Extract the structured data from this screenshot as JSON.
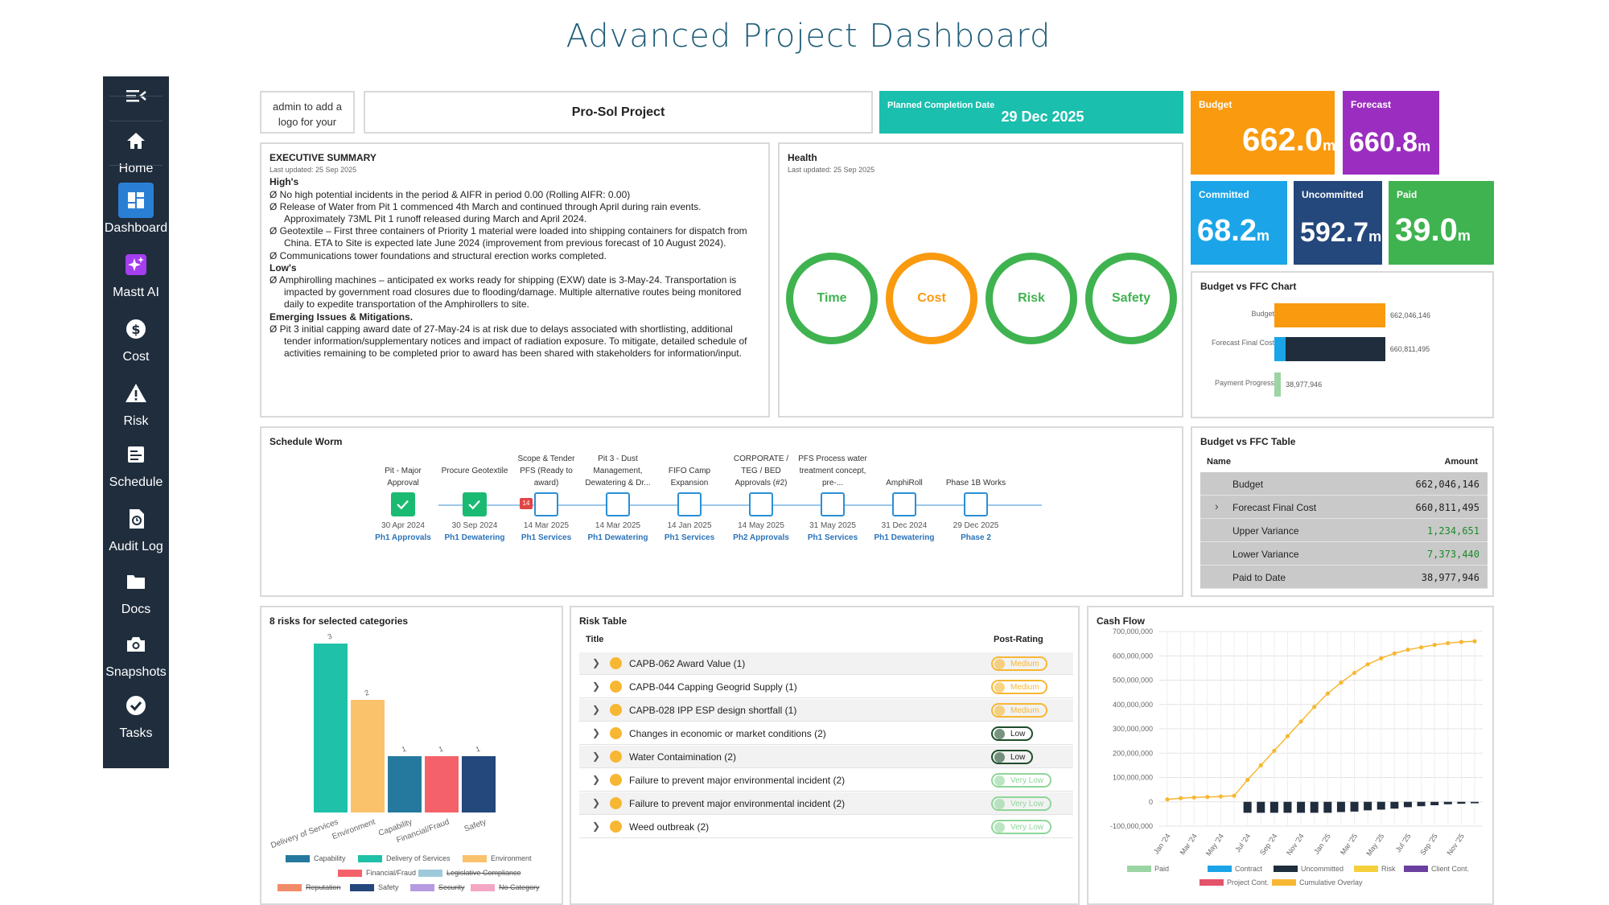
{
  "page_title": "Advanced Project Dashboard",
  "sidebar": {
    "items": [
      {
        "label": "Home",
        "icon": "home-icon"
      },
      {
        "label": "Dashboard",
        "icon": "dashboard-icon",
        "active": true
      },
      {
        "label": "Mastt AI",
        "icon": "sparkle-icon"
      },
      {
        "label": "Cost",
        "icon": "dollar-icon"
      },
      {
        "label": "Risk",
        "icon": "warning-icon"
      },
      {
        "label": "Schedule",
        "icon": "schedule-icon"
      },
      {
        "label": "Audit Log",
        "icon": "audit-icon"
      },
      {
        "label": "Docs",
        "icon": "folder-icon"
      },
      {
        "label": "Snapshots",
        "icon": "camera-icon"
      },
      {
        "label": "Tasks",
        "icon": "check-icon"
      }
    ]
  },
  "header": {
    "logo_placeholder": "admin to add a logo for your",
    "project_name": "Pro-Sol Project",
    "completion_label": "Planned Completion Date",
    "completion_value": "29 Dec 2025"
  },
  "metrics": {
    "budget": {
      "label": "Budget",
      "value": "662.0",
      "unit": "m",
      "color": "#f99a0f"
    },
    "forecast": {
      "label": "Forecast",
      "value": "660.8",
      "unit": "m",
      "color": "#9b2ec0"
    },
    "committed": {
      "label": "Committed",
      "value": "68.2",
      "unit": "m",
      "color": "#1ba5e8"
    },
    "uncommitted": {
      "label": "Uncommitted",
      "value": "592.7",
      "unit": "m",
      "color": "#24477c"
    },
    "paid": {
      "label": "Paid",
      "value": "39.0",
      "unit": "m",
      "color": "#3fb34f"
    }
  },
  "executive_summary": {
    "title": "EXECUTIVE SUMMARY",
    "updated": "Last updated: 25 Sep 2025",
    "highs_heading": "High's",
    "highs": [
      "Ø No high potential incidents in the period & AIFR in period 0.00 (Rolling AIFR: 0.00)",
      "Ø Release of Water from Pit 1 commenced 4th March and continued through April during rain events. Approximately 73ML Pit 1 runoff released during March and April 2024.",
      "Ø Geotextile – First three containers of Priority 1 material were loaded into shipping containers for dispatch from China. ETA to Site is expected late June 2024 (improvement from previous forecast of 10 August 2024).",
      "Ø Communications tower foundations and structural erection works completed."
    ],
    "lows_heading": "Low's",
    "lows": [
      "Ø Amphirolling machines – anticipated ex works ready for shipping (EXW) date is 3-May-24. Transportation is impacted by government road closures due to flooding/damage. Multiple alternative routes being monitored daily to expedite transportation of the Amphirollers to site."
    ],
    "issues_heading": "Emerging Issues & Mitigations.",
    "issues": [
      "Ø Pit 3 initial capping award date of 27-May-24 is at risk due to delays associated with shortlisting, additional tender information/supplementary notices and impact of radiation exposure. To mitigate, detailed schedule of activities remaining to be completed prior to award has been shared with stakeholders for information/input."
    ]
  },
  "health": {
    "title": "Health",
    "updated": "Last updated: 25 Sep 2025",
    "rings": [
      {
        "label": "Time",
        "color": "#3fb34f"
      },
      {
        "label": "Cost",
        "color": "#f99a0f"
      },
      {
        "label": "Risk",
        "color": "#3fb34f"
      },
      {
        "label": "Safety",
        "color": "#3fb34f"
      }
    ]
  },
  "budget_ffc_chart": {
    "title": "Budget vs FFC Chart",
    "rows": [
      {
        "label": "Budget",
        "value_label": "662,046,146",
        "value": 662046146
      },
      {
        "label": "Forecast Final Cost",
        "value_label": "660,811,495",
        "value": 660811495
      },
      {
        "label": "Payment Progress",
        "value_label": "38,977,946",
        "value": 38977946
      }
    ]
  },
  "schedule": {
    "title": "Schedule Worm",
    "milestones": [
      {
        "name": "Pit - Major Approval",
        "date": "30 Apr 2024",
        "phase": "Ph1 Approvals",
        "done": true
      },
      {
        "name": "Procure Geotextile",
        "date": "30 Sep 2024",
        "phase": "Ph1 Dewatering",
        "done": true
      },
      {
        "name": "Scope & Tender PFS (Ready to award)",
        "date": "14 Mar 2025",
        "phase": "Ph1 Services",
        "done": false,
        "flag": "14"
      },
      {
        "name": "Pit 3 - Dust Management, Dewatering & Dr...",
        "date": "14 Mar 2025",
        "phase": "Ph1 Dewatering",
        "done": false
      },
      {
        "name": "FIFO Camp Expansion",
        "date": "14 Jan 2025",
        "phase": "Ph1 Services",
        "done": false
      },
      {
        "name": "CORPORATE / TEG / BED Approvals (#2)",
        "date": "14 May 2025",
        "phase": "Ph2 Approvals",
        "done": false
      },
      {
        "name": "PFS Process water treatment concept, pre-...",
        "date": "31 May 2025",
        "phase": "Ph1 Services",
        "done": false
      },
      {
        "name": "AmphiRoll",
        "date": "31 Dec 2024",
        "phase": "Ph1 Dewatering",
        "done": false
      },
      {
        "name": "Phase 1B Works",
        "date": "29 Dec 2025",
        "phase": "Phase 2",
        "done": false
      }
    ]
  },
  "budget_ffc_table": {
    "title": "Budget vs FFC Table",
    "col_name": "Name",
    "col_amount": "Amount",
    "rows": [
      {
        "name": "Budget",
        "amount": "662,046,146",
        "color": "#222"
      },
      {
        "name": "Forecast Final Cost",
        "amount": "660,811,495",
        "color": "#222",
        "expand": "›"
      },
      {
        "name": "Upper Variance",
        "amount": "1,234,651",
        "color": "#1a8a2a"
      },
      {
        "name": "Lower Variance",
        "amount": "7,373,440",
        "color": "#1a8a2a"
      },
      {
        "name": "Paid to Date",
        "amount": "38,977,946",
        "color": "#222"
      }
    ]
  },
  "risk_categories": {
    "title": "8 risks for selected categories",
    "legend": [
      {
        "label": "Capability",
        "color": "#26799e",
        "struck": false
      },
      {
        "label": "Delivery of Services",
        "color": "#1fc1a8",
        "struck": false
      },
      {
        "label": "Environment",
        "color": "#fbc26c",
        "struck": false
      },
      {
        "label": "Financial/Fraud",
        "color": "#f5616a",
        "struck": false
      },
      {
        "label": "Legislative Compliance",
        "color": "#9ec9da",
        "struck": true
      },
      {
        "label": "Reputation",
        "color": "#f28b6a",
        "struck": true
      },
      {
        "label": "Safety",
        "color": "#24477c",
        "struck": false
      },
      {
        "label": "Security",
        "color": "#b79be0",
        "struck": true
      },
      {
        "label": "No Category",
        "color": "#f4a7c4",
        "struck": true
      }
    ]
  },
  "chart_data": [
    {
      "type": "bar",
      "title": "8 risks for selected categories",
      "categories": [
        "Delivery of Services",
        "Environment",
        "Capability",
        "Financial/Fraud",
        "Safety"
      ],
      "values": [
        3,
        2,
        1,
        1,
        1
      ],
      "data_labels": [
        "3",
        "2",
        "1",
        "1",
        "1"
      ],
      "colors": [
        "#1fc1a8",
        "#fbc26c",
        "#26799e",
        "#f5616a",
        "#24477c"
      ],
      "ylim": [
        0,
        3
      ]
    },
    {
      "type": "bar",
      "title": "Cash Flow",
      "categories": [
        "Jan '24",
        "Feb '24",
        "Mar '24",
        "Apr '24",
        "May '24",
        "Jun '24",
        "Jul '24",
        "Aug '24",
        "Sep '24",
        "Oct '24",
        "Nov '24",
        "Dec '24",
        "Jan '25",
        "Feb '25",
        "Mar '25",
        "Apr '25",
        "May '25",
        "Jun '25",
        "Jul '25",
        "Aug '25",
        "Sep '25",
        "Oct '25",
        "Nov '25",
        "Dec '25"
      ],
      "x_tick_labels": [
        "Jan '24",
        "Mar '24",
        "May '24",
        "Jul '24",
        "Sep '24",
        "Nov '24",
        "Jan '25",
        "Mar '25",
        "May '25",
        "Jul '25",
        "Sep '25",
        "Nov '25"
      ],
      "y_tick_labels": [
        "700,000,000",
        "600,000,000",
        "500,000,000",
        "400,000,000",
        "300,000,000",
        "200,000,000",
        "100,000,000",
        "0",
        "-100,000,000"
      ],
      "ylim": [
        -100000000,
        700000000
      ],
      "series": [
        {
          "name": "Uncommitted",
          "type": "bar",
          "color": "#1f2d3d",
          "values": [
            0,
            0,
            0,
            0,
            0,
            0,
            -45000000,
            -45000000,
            -45000000,
            -45000000,
            -45000000,
            -45000000,
            -45000000,
            -42000000,
            -40000000,
            -35000000,
            -32000000,
            -28000000,
            -22000000,
            -18000000,
            -14000000,
            -10000000,
            -8000000,
            -6000000
          ]
        },
        {
          "name": "Cumulative Overlay",
          "type": "line",
          "color": "#f7b733",
          "values": [
            10000000,
            15000000,
            18000000,
            20000000,
            22000000,
            25000000,
            90000000,
            150000000,
            210000000,
            270000000,
            330000000,
            390000000,
            445000000,
            490000000,
            530000000,
            565000000,
            590000000,
            610000000,
            625000000,
            635000000,
            645000000,
            652000000,
            657000000,
            660000000
          ]
        }
      ],
      "legend": [
        {
          "label": "Paid",
          "color": "#9bd5a3"
        },
        {
          "label": "Contract",
          "color": "#1ba5e8"
        },
        {
          "label": "Uncommitted",
          "color": "#1f2d3d"
        },
        {
          "label": "Risk",
          "color": "#f5d03b"
        },
        {
          "label": "Client Cont.",
          "color": "#6b3fa0"
        },
        {
          "label": "Project Cont.",
          "color": "#e3536b"
        },
        {
          "label": "Cumulative Overlay",
          "color": "#f7b733"
        }
      ]
    }
  ],
  "risk_table": {
    "title": "Risk Table",
    "col_title": "Title",
    "col_rating": "Post-Rating",
    "rows": [
      {
        "title": "CAPB-062 Award Value  (1)",
        "rating": "Medium",
        "color": "#f7b733"
      },
      {
        "title": "CAPB-044 Capping Geogrid Supply  (1)",
        "rating": "Medium",
        "color": "#f7b733"
      },
      {
        "title": "CAPB-028 IPP ESP design shortfall  (1)",
        "rating": "Medium",
        "color": "#f7b733"
      },
      {
        "title": "Changes in economic or market conditions  (2)",
        "rating": "Low",
        "color": "#1e4d2b"
      },
      {
        "title": "Water Contaimination  (2)",
        "rating": "Low",
        "color": "#1e4d2b"
      },
      {
        "title": "Failure to prevent major environmental incident  (2)",
        "rating": "Very Low",
        "color": "#8fd69a"
      },
      {
        "title": "Failure to prevent major environmental incident  (2)",
        "rating": "Very Low",
        "color": "#8fd69a"
      },
      {
        "title": "Weed outbreak  (2)",
        "rating": "Very Low",
        "color": "#8fd69a"
      }
    ]
  },
  "cash_flow": {
    "title": "Cash Flow"
  }
}
